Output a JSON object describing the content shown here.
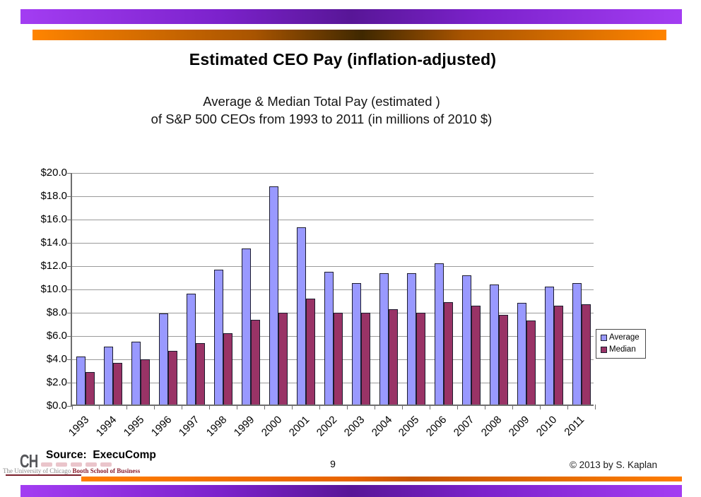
{
  "slide": {
    "title": "Estimated CEO Pay (inflation-adjusted)",
    "source": "Source:  ExecuComp",
    "page_number": "9",
    "copyright": "© 2013 by S. Kaplan",
    "logo": {
      "letters": "CH",
      "university": "The University of Chicago ",
      "school": "Booth School of Business"
    }
  },
  "colors": {
    "average_bar": "#9999FF",
    "median_bar": "#993366",
    "top_bar_purple": "#8A2BE2",
    "top_bar_orange": "#F57C00"
  },
  "chart_data": {
    "type": "bar",
    "title_line1": "Average & Median Total Pay (estimated )",
    "title_line2": "of S&P 500 CEOs from 1993 to 2011 (in millions of 2010 $)",
    "categories": [
      "1993",
      "1994",
      "1995",
      "1996",
      "1997",
      "1998",
      "1999",
      "2000",
      "2001",
      "2002",
      "2003",
      "2004",
      "2005",
      "2006",
      "2007",
      "2008",
      "2009",
      "2010",
      "2011"
    ],
    "series": [
      {
        "name": "Average",
        "color": "#9999FF",
        "values": [
          4.1,
          5.0,
          5.4,
          7.8,
          9.5,
          11.6,
          13.4,
          18.7,
          15.2,
          11.4,
          10.4,
          11.3,
          11.3,
          12.1,
          11.1,
          10.3,
          8.7,
          10.1,
          10.4
        ]
      },
      {
        "name": "Median",
        "color": "#993366",
        "values": [
          2.8,
          3.6,
          3.9,
          4.6,
          5.3,
          6.1,
          7.3,
          7.9,
          9.1,
          7.9,
          7.9,
          8.2,
          7.9,
          8.8,
          8.5,
          7.7,
          7.2,
          8.5,
          8.6
        ]
      }
    ],
    "ylim": [
      0,
      20
    ],
    "ytick_step": 2,
    "ytick_labels": [
      "$0.0",
      "$2.0",
      "$4.0",
      "$6.0",
      "$8.0",
      "$10.0",
      "$12.0",
      "$14.0",
      "$16.0",
      "$18.0",
      "$20.0"
    ],
    "xlabel": "",
    "ylabel": "",
    "grid": true,
    "legend_position": "right"
  }
}
